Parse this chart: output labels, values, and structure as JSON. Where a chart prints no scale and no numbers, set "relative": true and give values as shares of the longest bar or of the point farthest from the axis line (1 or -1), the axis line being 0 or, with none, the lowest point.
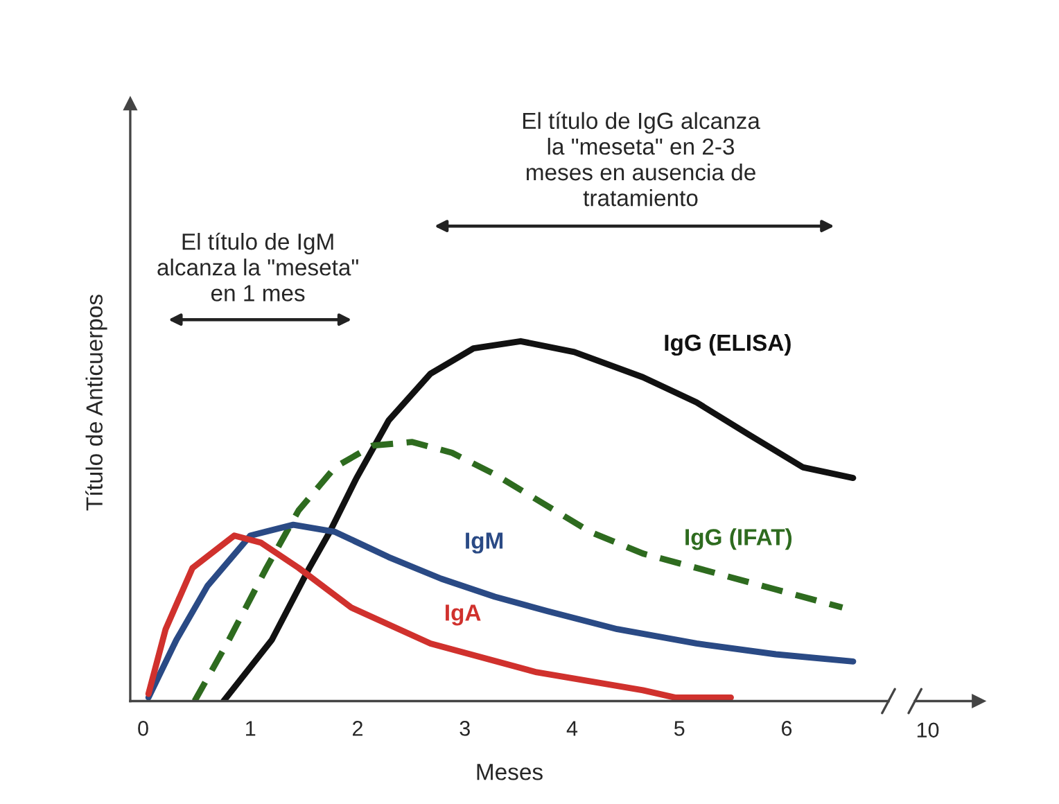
{
  "chart_data": [
    {
      "type": "line",
      "relative": true,
      "xlabel": "Meses",
      "ylabel": "Título de Anticuerpos",
      "xlim": [
        -0.12,
        6.95
      ],
      "xticks": [
        0,
        1,
        2,
        3,
        4,
        5,
        6
      ],
      "grid": false,
      "legend": false,
      "marker": "none",
      "series": [
        {
          "name": "IgG (ELISA)",
          "color": "#111111",
          "line_style": "solid",
          "x": [
            0.75,
            1.2,
            1.55,
            1.74,
            1.99,
            2.29,
            2.68,
            3.08,
            3.52,
            4.02,
            4.66,
            5.16,
            5.65,
            6.15,
            6.62
          ],
          "values": [
            0,
            0.17,
            0.37,
            0.47,
            0.62,
            0.78,
            0.91,
            0.98,
            1.0,
            0.97,
            0.9,
            0.83,
            0.74,
            0.65,
            0.62
          ]
        },
        {
          "name": "IgG (IFAT)",
          "color": "#2e6b1f",
          "line_style": "dashed",
          "x": [
            0.48,
            0.8,
            1.15,
            1.45,
            1.79,
            2.14,
            2.51,
            2.88,
            3.28,
            3.67,
            4.17,
            4.66,
            5.16,
            5.9,
            6.52
          ],
          "values": [
            0,
            0.17,
            0.37,
            0.53,
            0.65,
            0.71,
            0.72,
            0.69,
            0.63,
            0.56,
            0.47,
            0.41,
            0.37,
            0.31,
            0.26
          ]
        },
        {
          "name": "IgM",
          "color": "#2a4a85",
          "line_style": "solid",
          "x": [
            0.05,
            0.31,
            0.6,
            1.0,
            1.4,
            1.79,
            2.29,
            2.78,
            3.28,
            3.77,
            4.42,
            5.16,
            5.9,
            6.62
          ],
          "values": [
            0.01,
            0.17,
            0.32,
            0.46,
            0.49,
            0.47,
            0.4,
            0.34,
            0.29,
            0.25,
            0.2,
            0.16,
            0.13,
            0.11
          ]
        },
        {
          "name": "IgA",
          "color": "#d0312d",
          "line_style": "solid",
          "x": [
            0.05,
            0.21,
            0.46,
            0.85,
            1.1,
            1.45,
            1.94,
            2.68,
            3.67,
            4.66,
            4.96,
            5.48
          ],
          "values": [
            0.02,
            0.2,
            0.37,
            0.46,
            0.44,
            0.37,
            0.26,
            0.16,
            0.08,
            0.03,
            0.01,
            0.01
          ]
        }
      ],
      "annotations": [
        "El título de IgM\nalcanza la \"meseta\"\nen 1 mes",
        "El título de IgG alcanza\nla \"meseta\" en 2-3\nmeses en ausencia de\ntratamiento"
      ]
    },
    {
      "type": "other",
      "annotations": [
        "10"
      ]
    }
  ]
}
